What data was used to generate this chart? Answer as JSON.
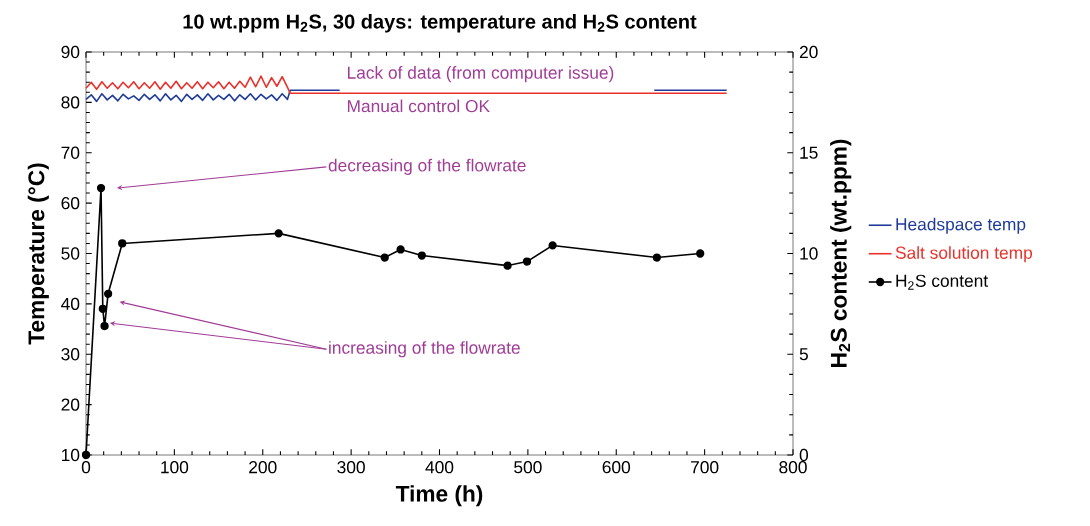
{
  "chart_data": {
    "type": "line",
    "title": "10 wt.ppm H$_{2}$S, 30 days: temperature and H$_{2}$S content",
    "xlabel": "Time (h)",
    "ylabel": "Temperature (°C)",
    "y2label": "H$_{2}$S content (wt.ppm)",
    "xlim": [
      0,
      800
    ],
    "xticks": [
      0,
      100,
      200,
      300,
      400,
      500,
      600,
      700,
      800
    ],
    "ylim": [
      10,
      90
    ],
    "yticks": [
      10,
      20,
      30,
      40,
      50,
      60,
      70,
      80,
      90
    ],
    "y2lim": [
      0,
      20
    ],
    "y2ticks": [
      0,
      5,
      10,
      15,
      20
    ],
    "grid": false,
    "legend": "right",
    "series": [
      {
        "name": "Headspace temp",
        "color": "#1f3b9a",
        "marker": "none",
        "axis": "y",
        "x": [
          0,
          6,
          12,
          18,
          24,
          30,
          36,
          42,
          48,
          54,
          60,
          66,
          72,
          78,
          84,
          90,
          96,
          102,
          108,
          114,
          120,
          126,
          132,
          138,
          144,
          150,
          156,
          162,
          168,
          174,
          180,
          186,
          192,
          198,
          204,
          210,
          216,
          222,
          228,
          231,
          287,
          288,
          643,
          725
        ],
        "values": [
          80.6,
          81.5,
          80.2,
          81.7,
          80.5,
          81.4,
          80.3,
          81.6,
          80.7,
          81.3,
          80.4,
          81.6,
          80.6,
          81.5,
          80.3,
          81.7,
          80.5,
          81.4,
          80.2,
          81.6,
          80.6,
          81.5,
          80.4,
          81.7,
          80.5,
          81.4,
          80.6,
          81.6,
          80.3,
          81.5,
          80.6,
          81.7,
          80.5,
          81.6,
          80.7,
          81.5,
          80.4,
          81.7,
          80.6,
          82.4,
          82.4,
          null,
          82.4,
          82.4
        ]
      },
      {
        "name": "Salt solution temp",
        "color": "#e8312a",
        "marker": "none",
        "axis": "y",
        "x": [
          0,
          6,
          12,
          18,
          24,
          30,
          36,
          42,
          48,
          54,
          60,
          66,
          72,
          78,
          84,
          90,
          96,
          102,
          108,
          114,
          120,
          126,
          132,
          138,
          144,
          150,
          156,
          162,
          168,
          174,
          180,
          186,
          192,
          198,
          204,
          210,
          216,
          222,
          228,
          231,
          725
        ],
        "values": [
          82.8,
          84.0,
          82.6,
          84.1,
          82.8,
          83.9,
          82.7,
          84.0,
          82.9,
          84.1,
          82.7,
          83.9,
          82.8,
          84.1,
          82.6,
          84.0,
          82.8,
          84.2,
          82.7,
          83.9,
          82.8,
          84.1,
          82.7,
          84.0,
          82.9,
          84.1,
          82.7,
          84.0,
          82.8,
          84.2,
          83.0,
          85.0,
          83.1,
          85.2,
          83.0,
          84.9,
          83.2,
          85.1,
          83.0,
          81.8,
          81.8
        ]
      },
      {
        "name": "H$_{2}$S content",
        "color": "#000000",
        "marker": "circle",
        "axis": "y2",
        "x": [
          0,
          17,
          19,
          21,
          25,
          41,
          218,
          338,
          356,
          380,
          477,
          499,
          528,
          646,
          695
        ],
        "values": [
          0,
          13.25,
          7.25,
          6.4,
          8.0,
          10.5,
          11.0,
          9.8,
          10.2,
          9.9,
          9.4,
          9.6,
          10.4,
          9.8,
          10.0
        ]
      }
    ],
    "annotations": [
      "Lack of data (from computer issue)",
      "Manual control OK",
      "decreasing of the flowrate",
      "increasing of the flowrate"
    ]
  }
}
